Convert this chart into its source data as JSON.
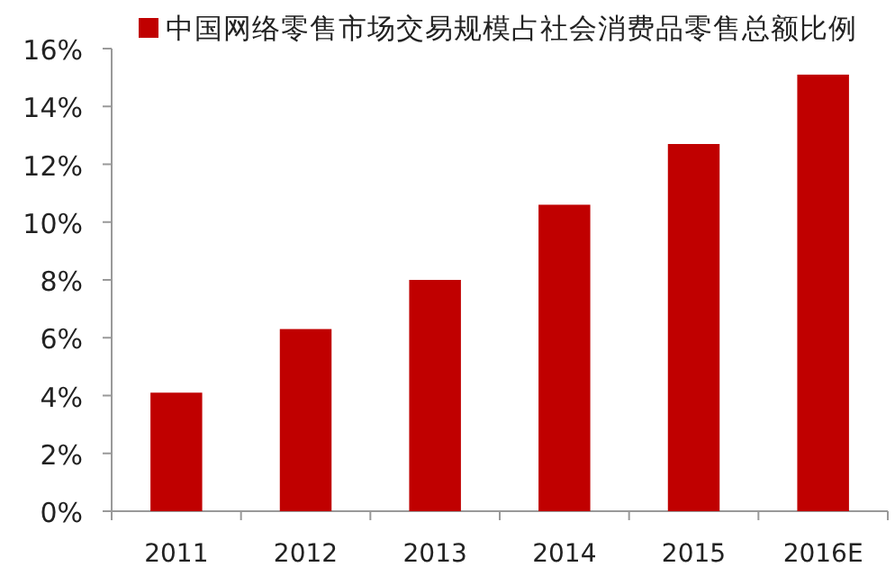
{
  "chart_data": {
    "type": "bar",
    "categories": [
      "2011",
      "2012",
      "2013",
      "2014",
      "2015",
      "2016E"
    ],
    "series": [
      {
        "name": "中国网络零售市场交易规模占社会消费品零售总额比例",
        "color": "#c00000",
        "values": [
          4.1,
          6.3,
          8.0,
          10.6,
          12.7,
          15.1
        ]
      }
    ],
    "ylim": [
      0,
      16
    ],
    "yticks": [
      {
        "value": 0,
        "label": "0%"
      },
      {
        "value": 2,
        "label": "2%"
      },
      {
        "value": 4,
        "label": "4%"
      },
      {
        "value": 6,
        "label": "6%"
      },
      {
        "value": 8,
        "label": "8%"
      },
      {
        "value": 10,
        "label": "10%"
      },
      {
        "value": 12,
        "label": "12%"
      },
      {
        "value": 14,
        "label": "14%"
      },
      {
        "value": 16,
        "label": "16%"
      }
    ],
    "legend": "top"
  }
}
